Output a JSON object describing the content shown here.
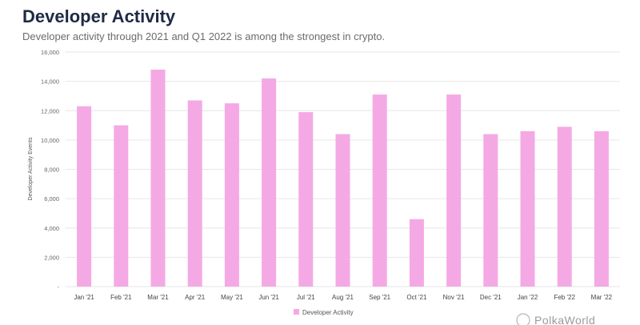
{
  "header": {
    "title": "Developer Activity",
    "subtitle": "Developer activity through 2021 and Q1 2022 is among the strongest in crypto."
  },
  "colors": {
    "bar": "#f4a9e4",
    "title": "#1f2a44",
    "grid": "#e6e6e6"
  },
  "watermark": "PolkaWorld",
  "chart_data": {
    "type": "bar",
    "categories": [
      "Jan '21",
      "Feb '21",
      "Mar '21",
      "Apr '21",
      "May '21",
      "Jun '21",
      "Jul '21",
      "Aug '21",
      "Sep '21",
      "Oct '21",
      "Nov '21",
      "Dec '21",
      "Jan '22",
      "Feb '22",
      "Mar '22"
    ],
    "series": [
      {
        "name": "Developer Activity",
        "values": [
          12300,
          11000,
          14800,
          12700,
          12500,
          14200,
          11900,
          10400,
          13100,
          4600,
          13100,
          10400,
          10600,
          10900,
          10600
        ]
      }
    ],
    "ylabel": "Developer Activity Events",
    "yticks": [
      "16,000",
      "14,000",
      "12,000",
      "10,000",
      "8,000",
      "6,000",
      "4,000",
      "2,000",
      "-"
    ],
    "ylim": [
      0,
      16000
    ],
    "grid": true,
    "legend": "bottom"
  }
}
